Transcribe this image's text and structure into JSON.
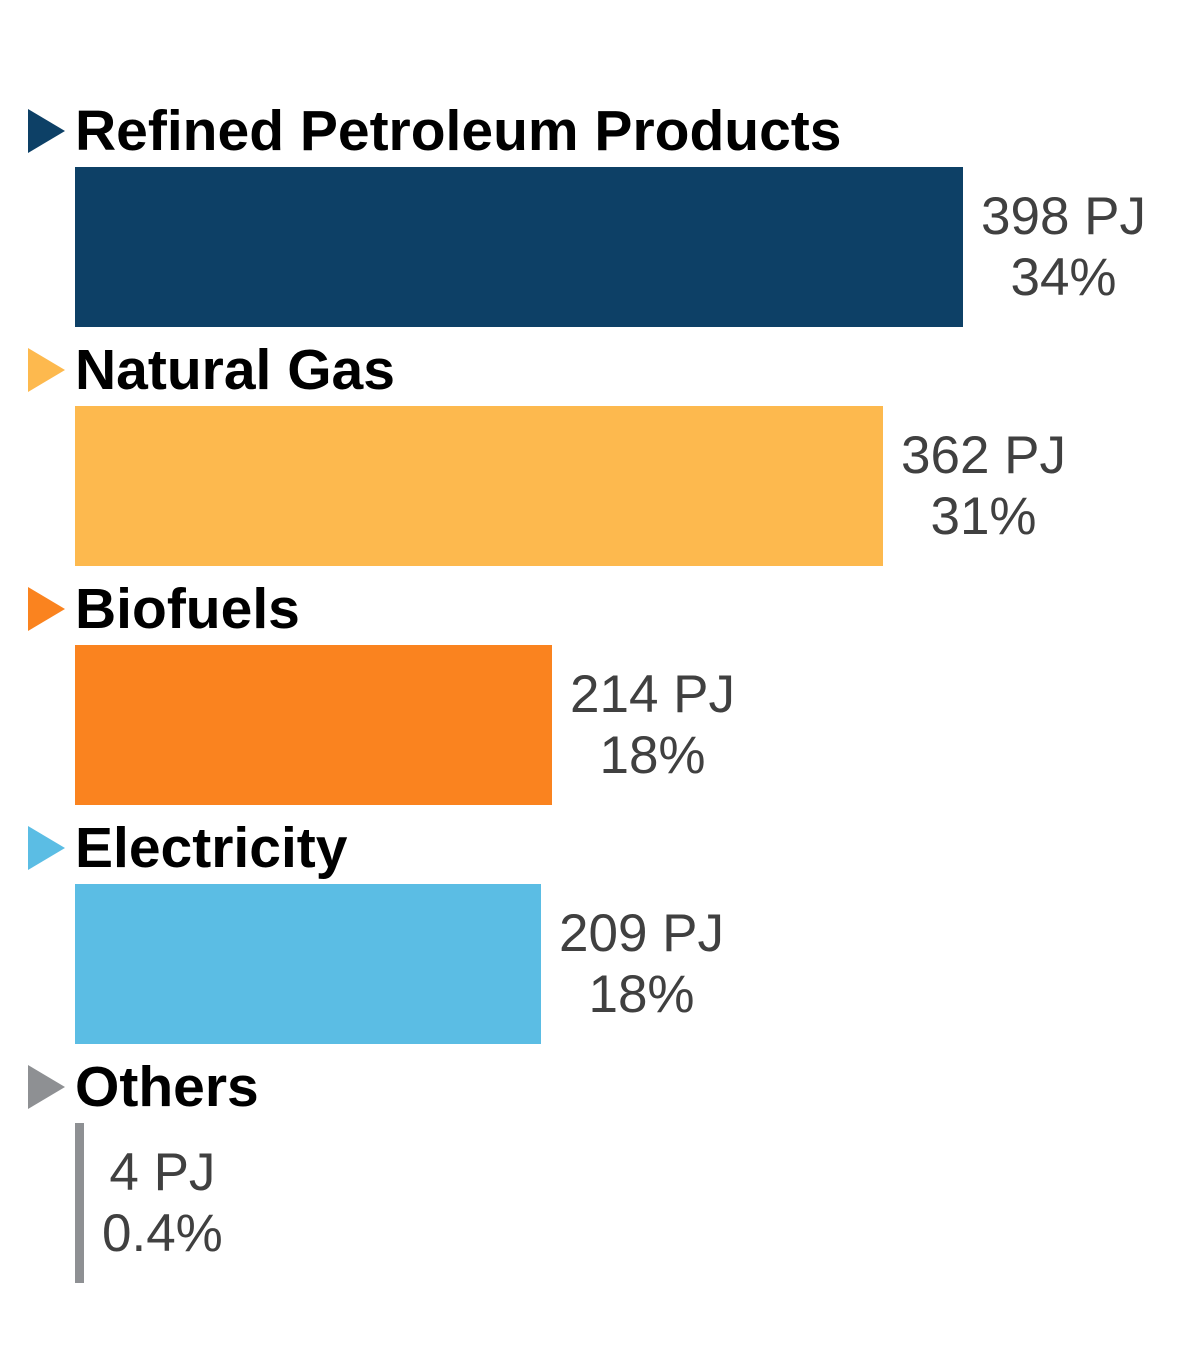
{
  "chart_data": {
    "type": "bar",
    "orientation": "horizontal",
    "title": "",
    "unit": "PJ",
    "value_axis": {
      "min": 0,
      "max": 398,
      "visible": false
    },
    "grid": false,
    "legend": "none",
    "data_label_style": "two lines outside bar end: value in PJ, then percent share",
    "categories": [
      "Refined Petroleum Products",
      "Natural Gas",
      "Biofuels",
      "Electricity",
      "Others"
    ],
    "values_pj": [
      398,
      362,
      214,
      209,
      4
    ],
    "percent_shares": [
      "34%",
      "31%",
      "18%",
      "18%",
      "0.4%"
    ],
    "text_color": "#404040",
    "category_label_color": "#000000",
    "items": [
      {
        "label": "Refined Petroleum Products",
        "value_pj": 398,
        "value_label": "398 PJ",
        "percent_label": "34%",
        "color": "#0D4066",
        "marker": "right-triangle"
      },
      {
        "label": "Natural Gas",
        "value_pj": 362,
        "value_label": "362 PJ",
        "percent_label": "31%",
        "color": "#FDB94E",
        "marker": "right-triangle"
      },
      {
        "label": "Biofuels",
        "value_pj": 214,
        "value_label": "214 PJ",
        "percent_label": "18%",
        "color": "#FA831F",
        "marker": "right-triangle"
      },
      {
        "label": "Electricity",
        "value_pj": 209,
        "value_label": "209 PJ",
        "percent_label": "18%",
        "color": "#5BBDE4",
        "marker": "right-triangle"
      },
      {
        "label": "Others",
        "value_pj": 4,
        "value_label": "4 PJ",
        "percent_label": "0.4%",
        "color": "#8E9093",
        "marker": "right-triangle"
      }
    ]
  }
}
